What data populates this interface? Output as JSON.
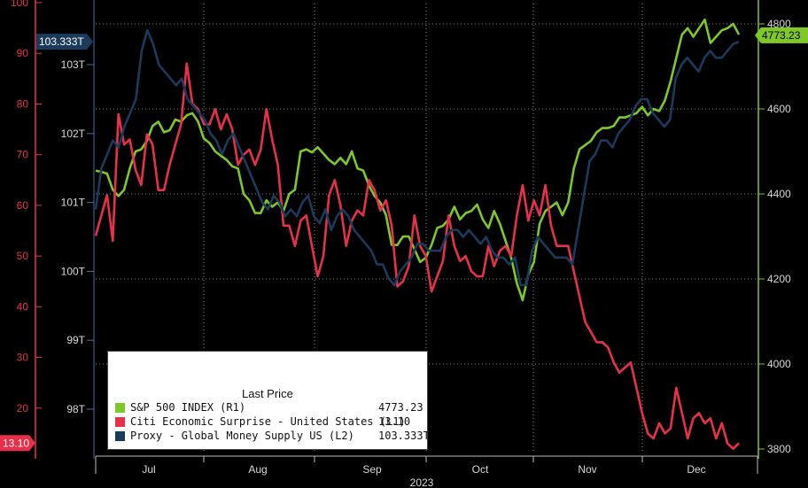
{
  "chart_data": {
    "type": "line",
    "xlabel": "2023",
    "x_ticks": [
      "Jul",
      "Aug",
      "Sep",
      "Oct",
      "Nov",
      "Dec"
    ],
    "axes": {
      "L1": {
        "side": "left-outer",
        "color": "#e8304a",
        "ylim": [
          10,
          100
        ],
        "ticks": [
          "20",
          "30",
          "40",
          "50",
          "60",
          "70",
          "80",
          "90",
          "100"
        ]
      },
      "L2": {
        "side": "left-inner",
        "color": "#1c3a5c",
        "ylim": [
          97.5,
          103.9
        ],
        "ticks": [
          "98T",
          "99T",
          "100T",
          "101T",
          "102T",
          "103T"
        ]
      },
      "R1": {
        "side": "right",
        "color": "#7ec828",
        "ylim": [
          3780,
          4850
        ],
        "ticks": [
          "3800",
          "4000",
          "4200",
          "4400",
          "4600",
          "4800"
        ]
      }
    },
    "grid": true,
    "legend": {
      "position": "bottom-left",
      "header": "Last Price",
      "entries": [
        {
          "label": "S&P 500 INDEX  (R1)",
          "value": "4773.23",
          "color": "#7ec828"
        },
        {
          "label": "Citi Economic Surprise - United States  (L1)",
          "value": "13.10",
          "color": "#e8304a"
        },
        {
          "label": "Proxy - Global Money Supply US  (L2)",
          "value": "103.333T",
          "color": "#1c3a5c"
        }
      ]
    },
    "series": [
      {
        "name": "S&P 500 INDEX",
        "axis": "R1",
        "color": "#7ec828",
        "values": [
          4455,
          4452,
          4448,
          4410,
          4395,
          4410,
          4460,
          4500,
          4505,
          4525,
          4560,
          4570,
          4545,
          4550,
          4575,
          4570,
          4585,
          4590,
          4570,
          4530,
          4520,
          4500,
          4490,
          4480,
          4465,
          4460,
          4400,
          4385,
          4355,
          4355,
          4385,
          4370,
          4380,
          4360,
          4400,
          4410,
          4500,
          4505,
          4498,
          4510,
          4495,
          4480,
          4470,
          4485,
          4470,
          4500,
          4460,
          4455,
          4420,
          4395,
          4380,
          4350,
          4280,
          4280,
          4300,
          4300,
          4270,
          4240,
          4250,
          4280,
          4320,
          4325,
          4340,
          4370,
          4340,
          4355,
          4360,
          4375,
          4340,
          4320,
          4360,
          4330,
          4290,
          4250,
          4190,
          4150,
          4210,
          4240,
          4330,
          4360,
          4370,
          4380,
          4350,
          4380,
          4460,
          4505,
          4515,
          4525,
          4545,
          4555,
          4555,
          4560,
          4580,
          4580,
          4585,
          4590,
          4605,
          4585,
          4600,
          4595,
          4620,
          4665,
          4720,
          4775,
          4790,
          4770,
          4790,
          4810,
          4755,
          4770,
          4785,
          4790,
          4800,
          4775
        ]
      },
      {
        "name": "Citi Economic Surprise - United States",
        "axis": "L1",
        "color": "#e8304a",
        "values": [
          54,
          58,
          62,
          53,
          78,
          72,
          73,
          67,
          64,
          74,
          72,
          63,
          63,
          68,
          72,
          76,
          88,
          80,
          79,
          76,
          76,
          79,
          75,
          78,
          75,
          68,
          70,
          71,
          68,
          71,
          79,
          73,
          68,
          56,
          56,
          52,
          57,
          58,
          52,
          46,
          50,
          62,
          65,
          60,
          52,
          57,
          59,
          58,
          65,
          63,
          59,
          61,
          56,
          44,
          45,
          48,
          58,
          52,
          50,
          43,
          46,
          49,
          58,
          52,
          49,
          50,
          47,
          46,
          46,
          52,
          48,
          51,
          52,
          50,
          58,
          64,
          57,
          61,
          58,
          64,
          56,
          52,
          52,
          52,
          47,
          42,
          37,
          35,
          33,
          33,
          32,
          29,
          27,
          28,
          29,
          24,
          19,
          15,
          14,
          17,
          15,
          16,
          24,
          19,
          14,
          18,
          19,
          17,
          18,
          14,
          17,
          13,
          12,
          13.1
        ]
      },
      {
        "name": "Proxy - Global Money Supply US",
        "axis": "L2",
        "color": "#1c3a5c",
        "values": [
          100.9,
          101.5,
          101.7,
          101.9,
          101.8,
          102.1,
          102.3,
          102.5,
          103.2,
          103.5,
          103.3,
          103.0,
          102.9,
          102.8,
          102.7,
          102.8,
          102.5,
          102.4,
          102.3,
          102.2,
          102.0,
          101.9,
          101.7,
          101.9,
          102.0,
          101.8,
          101.6,
          101.4,
          101.2,
          101.0,
          100.9,
          101.1,
          101.0,
          100.8,
          100.9,
          100.8,
          101.0,
          101.1,
          100.8,
          100.7,
          100.9,
          100.6,
          100.8,
          100.9,
          100.8,
          100.6,
          100.5,
          100.4,
          100.3,
          100.1,
          100.1,
          99.9,
          99.8,
          100.0,
          100.1,
          100.2,
          100.4,
          100.4,
          100.3,
          100.3,
          100.3,
          100.5,
          100.6,
          100.6,
          100.5,
          100.6,
          100.5,
          100.4,
          100.5,
          100.3,
          100.2,
          100.2,
          100.1,
          100.2,
          99.8,
          99.8,
          100.3,
          100.5,
          100.4,
          100.3,
          100.2,
          100.2,
          100.2,
          100.1,
          100.6,
          101.1,
          101.6,
          101.7,
          101.9,
          101.9,
          101.8,
          102.0,
          102.1,
          102.2,
          102.4,
          102.5,
          102.5,
          102.3,
          102.2,
          102.1,
          102.2,
          102.8,
          103.0,
          103.1,
          103.0,
          102.9,
          103.1,
          103.2,
          103.1,
          103.1,
          103.2,
          103.3,
          103.333
        ]
      }
    ],
    "last_price_labels": {
      "left_outer": "13.10",
      "left_inner": "103.333T",
      "right": "4773.23"
    }
  }
}
